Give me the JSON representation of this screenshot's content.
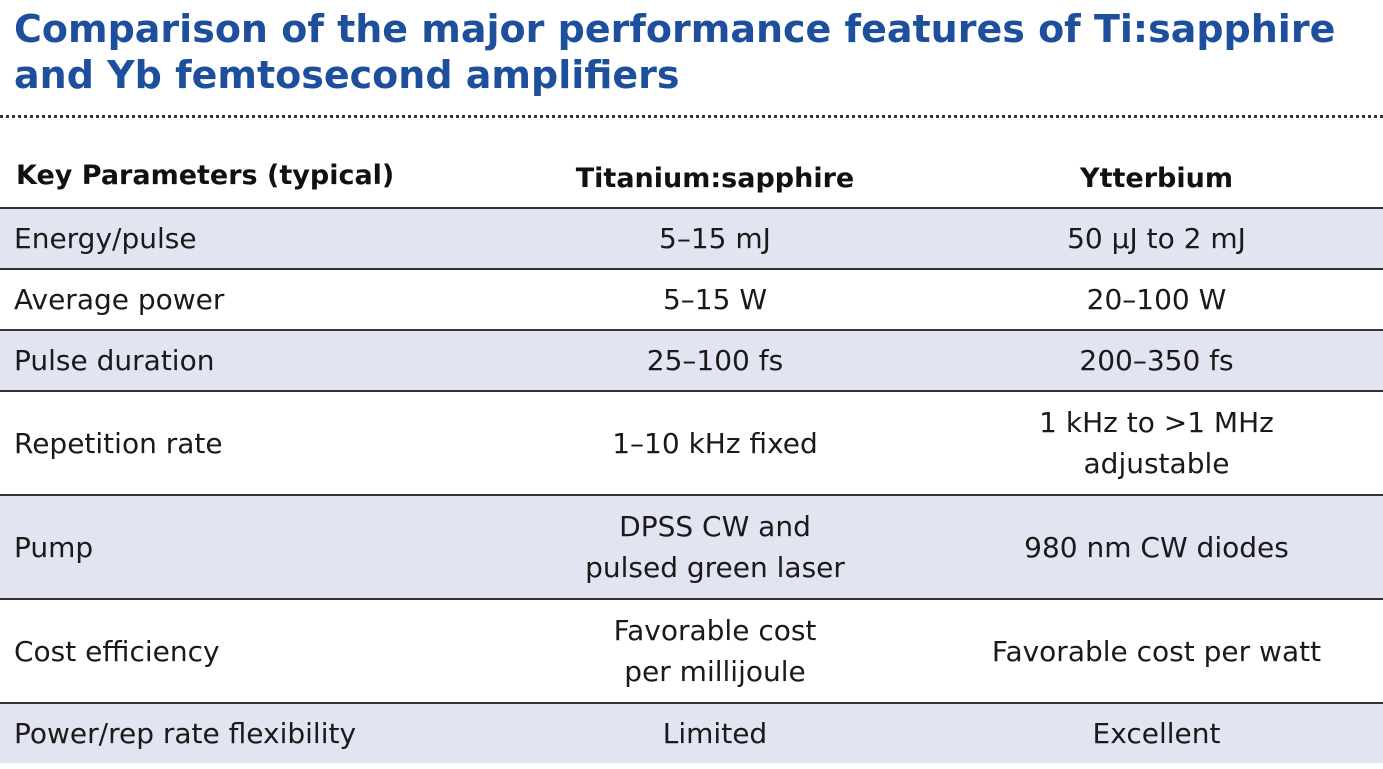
{
  "title": {
    "line1": "Comparison of the major performance features of Ti:sapphire",
    "line2": "and Yb femtosecond amplifiers"
  },
  "table": {
    "headers": [
      "Key Parameters (typical)",
      "Titanium:sapphire",
      "Ytterbium"
    ],
    "rows": [
      {
        "parameter": "Energy/pulse",
        "tisapphire": [
          "5–15 mJ"
        ],
        "ytterbium": [
          "50 µJ to 2 mJ"
        ]
      },
      {
        "parameter": "Average power",
        "tisapphire": [
          "5–15 W"
        ],
        "ytterbium": [
          "20–100 W"
        ]
      },
      {
        "parameter": "Pulse duration",
        "tisapphire": [
          "25–100 fs"
        ],
        "ytterbium": [
          "200–350 fs"
        ]
      },
      {
        "parameter": "Repetition rate",
        "tisapphire": [
          "1–10 kHz fixed"
        ],
        "ytterbium": [
          "1 kHz to >1 MHz",
          "adjustable"
        ]
      },
      {
        "parameter": "Pump",
        "tisapphire": [
          "DPSS CW and",
          "pulsed green laser"
        ],
        "ytterbium": [
          "980 nm CW diodes"
        ]
      },
      {
        "parameter": "Cost efficiency",
        "tisapphire": [
          "Favorable cost",
          "per millijoule"
        ],
        "ytterbium": [
          "Favorable cost per watt"
        ]
      },
      {
        "parameter": "Power/rep rate flexibility",
        "tisapphire": [
          "Limited"
        ],
        "ytterbium": [
          "Excellent"
        ]
      }
    ]
  }
}
